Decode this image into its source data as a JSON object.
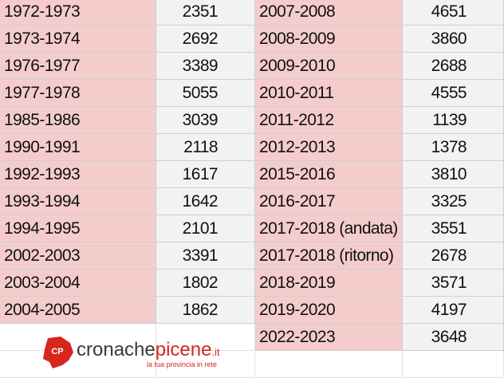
{
  "left_table": {
    "rows": [
      [
        "1972-1973",
        2351
      ],
      [
        "1973-1974",
        2692
      ],
      [
        "1976-1977",
        3389
      ],
      [
        "1977-1978",
        5055
      ],
      [
        "1985-1986",
        3039
      ],
      [
        "1990-1991",
        2118
      ],
      [
        "1992-1993",
        1617
      ],
      [
        "1993-1994",
        1642
      ],
      [
        "1994-1995",
        2101
      ],
      [
        "2002-2003",
        3391
      ],
      [
        "2003-2004",
        1802
      ],
      [
        "2004-2005",
        1862
      ]
    ]
  },
  "right_table": {
    "rows": [
      [
        "2007-2008",
        4651
      ],
      [
        "2008-2009",
        3860
      ],
      [
        "2009-2010",
        2688
      ],
      [
        "2010-2011",
        4555
      ],
      [
        "2011-2012",
        1139
      ],
      [
        "2012-2013",
        1378
      ],
      [
        "2015-2016",
        3810
      ],
      [
        "2016-2017",
        3325
      ],
      [
        "2017-2018 (andata)",
        3551
      ],
      [
        "2017-2018 (ritorno)",
        2678
      ],
      [
        "2018-2019",
        3571
      ],
      [
        "2019-2020",
        4197
      ],
      [
        "2022-2023",
        3648
      ]
    ]
  },
  "logo": {
    "mark": "CP",
    "name_first": "cronache",
    "name_second": "picene",
    "domain": ".it",
    "tagline": "la tua provincia in rete"
  }
}
